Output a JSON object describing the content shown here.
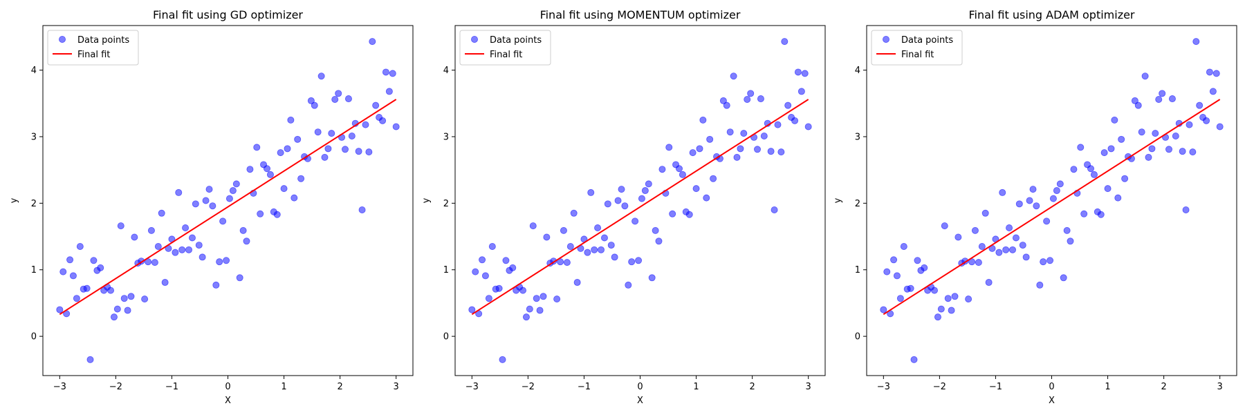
{
  "figure": {
    "background": "#ffffff"
  },
  "x_points": [
    -3.0,
    -2.939,
    -2.879,
    -2.818,
    -2.758,
    -2.697,
    -2.636,
    -2.576,
    -2.515,
    -2.455,
    -2.394,
    -2.333,
    -2.273,
    -2.212,
    -2.152,
    -2.091,
    -2.03,
    -1.97,
    -1.909,
    -1.848,
    -1.788,
    -1.727,
    -1.667,
    -1.606,
    -1.545,
    -1.485,
    -1.424,
    -1.364,
    -1.303,
    -1.242,
    -1.182,
    -1.121,
    -1.061,
    -1.0,
    -0.939,
    -0.879,
    -0.818,
    -0.758,
    -0.697,
    -0.636,
    -0.576,
    -0.515,
    -0.455,
    -0.394,
    -0.333,
    -0.273,
    -0.212,
    -0.152,
    -0.091,
    -0.03,
    0.03,
    0.091,
    0.152,
    0.212,
    0.273,
    0.333,
    0.394,
    0.455,
    0.515,
    0.576,
    0.636,
    0.697,
    0.758,
    0.818,
    0.879,
    0.939,
    1.0,
    1.061,
    1.121,
    1.182,
    1.242,
    1.303,
    1.364,
    1.424,
    1.485,
    1.545,
    1.606,
    1.667,
    1.727,
    1.788,
    1.848,
    1.909,
    1.97,
    2.03,
    2.091,
    2.152,
    2.212,
    2.273,
    2.333,
    2.394,
    2.455,
    2.515,
    2.576,
    2.636,
    2.697,
    2.758,
    2.818,
    2.879,
    2.939,
    3.0
  ],
  "y_points": [
    0.4,
    0.97,
    0.34,
    1.15,
    0.91,
    0.57,
    1.35,
    0.71,
    0.72,
    -0.35,
    1.14,
    0.99,
    1.03,
    0.69,
    0.74,
    0.69,
    0.29,
    0.41,
    1.66,
    0.57,
    0.39,
    0.6,
    1.49,
    1.1,
    1.13,
    0.56,
    1.12,
    1.59,
    1.11,
    1.35,
    1.85,
    0.81,
    1.32,
    1.46,
    1.26,
    2.16,
    1.3,
    1.63,
    1.3,
    1.48,
    1.99,
    1.37,
    1.19,
    2.04,
    2.21,
    1.96,
    0.77,
    1.12,
    1.73,
    1.14,
    2.07,
    2.19,
    2.29,
    0.88,
    1.59,
    1.43,
    2.51,
    2.15,
    2.84,
    1.84,
    2.58,
    2.52,
    2.43,
    1.87,
    1.83,
    2.76,
    2.22,
    2.82,
    3.25,
    2.08,
    2.96,
    2.37,
    2.7,
    2.67,
    3.54,
    3.47,
    3.07,
    3.91,
    2.69,
    2.82,
    3.05,
    3.56,
    3.65,
    2.99,
    2.81,
    3.57,
    3.01,
    3.2,
    2.78,
    1.9,
    3.18,
    2.77,
    4.43,
    3.47,
    3.29,
    3.24,
    3.97,
    3.68,
    3.95,
    3.15
  ],
  "fit_line": {
    "x": [
      -3.0,
      3.0
    ],
    "y": [
      0.33,
      3.56
    ]
  },
  "colors": {
    "points": "#0000ff",
    "fit": "#ff0000",
    "axes": "#000000"
  },
  "chart_data": [
    {
      "type": "scatter",
      "title": "Final fit using GD optimizer",
      "xlabel": "X",
      "ylabel": "y",
      "xlim": [
        -3.3,
        3.3
      ],
      "ylim": [
        -0.59,
        4.67
      ],
      "xticks": [
        -3,
        -2,
        -1,
        0,
        1,
        2,
        3
      ],
      "xtick_labels": [
        "−3",
        "−2",
        "−1",
        "0",
        "1",
        "2",
        "3"
      ],
      "yticks": [
        0,
        1,
        2,
        3,
        4
      ],
      "ytick_labels": [
        "0",
        "1",
        "2",
        "3",
        "4"
      ],
      "grid": false,
      "legend_position": "upper left",
      "series": [
        {
          "name": "Data points",
          "kind": "scatter"
        },
        {
          "name": "Final fit",
          "kind": "line"
        }
      ]
    },
    {
      "type": "scatter",
      "title": "Final fit using MOMENTUM optimizer",
      "xlabel": "X",
      "ylabel": "y",
      "xlim": [
        -3.3,
        3.3
      ],
      "ylim": [
        -0.59,
        4.67
      ],
      "xticks": [
        -3,
        -2,
        -1,
        0,
        1,
        2,
        3
      ],
      "xtick_labels": [
        "−3",
        "−2",
        "−1",
        "0",
        "1",
        "2",
        "3"
      ],
      "yticks": [
        0,
        1,
        2,
        3,
        4
      ],
      "ytick_labels": [
        "0",
        "1",
        "2",
        "3",
        "4"
      ],
      "grid": false,
      "legend_position": "upper left",
      "series": [
        {
          "name": "Data points",
          "kind": "scatter"
        },
        {
          "name": "Final fit",
          "kind": "line"
        }
      ]
    },
    {
      "type": "scatter",
      "title": "Final fit using ADAM optimizer",
      "xlabel": "X",
      "ylabel": "y",
      "xlim": [
        -3.3,
        3.3
      ],
      "ylim": [
        -0.59,
        4.67
      ],
      "xticks": [
        -3,
        -2,
        -1,
        0,
        1,
        2,
        3
      ],
      "xtick_labels": [
        "−3",
        "−2",
        "−1",
        "0",
        "1",
        "2",
        "3"
      ],
      "yticks": [
        0,
        1,
        2,
        3,
        4
      ],
      "ytick_labels": [
        "0",
        "1",
        "2",
        "3",
        "4"
      ],
      "grid": false,
      "legend_position": "upper left",
      "series": [
        {
          "name": "Data points",
          "kind": "scatter"
        },
        {
          "name": "Final fit",
          "kind": "line"
        }
      ]
    }
  ]
}
